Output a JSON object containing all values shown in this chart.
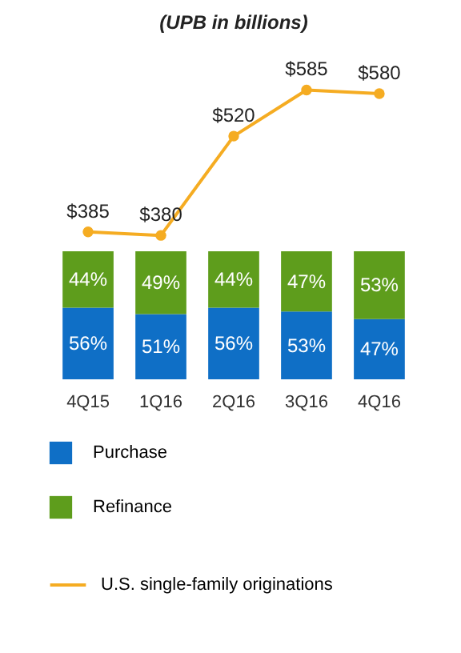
{
  "chart_data": [
    {
      "type": "bar",
      "stacked": true,
      "categories": [
        "4Q15",
        "1Q16",
        "2Q16",
        "3Q16",
        "4Q16"
      ],
      "series": [
        {
          "name": "Purchase",
          "color": "#0f6fc6",
          "values": [
            56,
            51,
            56,
            53,
            47
          ],
          "value_labels": [
            "56%",
            "51%",
            "56%",
            "53%",
            "47%"
          ]
        },
        {
          "name": "Refinance",
          "color": "#5e9d1c",
          "values": [
            44,
            49,
            44,
            47,
            53
          ],
          "value_labels": [
            "44%",
            "49%",
            "44%",
            "47%",
            "53%"
          ]
        }
      ],
      "legend": "bottom",
      "tick_labels": "x",
      "grid": false
    },
    {
      "type": "line",
      "title": "(UPB in billions)",
      "categories": [
        "4Q15",
        "1Q16",
        "2Q16",
        "3Q16",
        "4Q16"
      ],
      "series": [
        {
          "name": "U.S. single-family originations",
          "color": "#f5ac22",
          "marker": "circle",
          "values": [
            385,
            380,
            520,
            585,
            580
          ],
          "value_labels": [
            "$385",
            "$380",
            "$520",
            "$585",
            "$580"
          ]
        }
      ],
      "legend": "bottom",
      "tick_labels": false,
      "grid": false
    }
  ]
}
